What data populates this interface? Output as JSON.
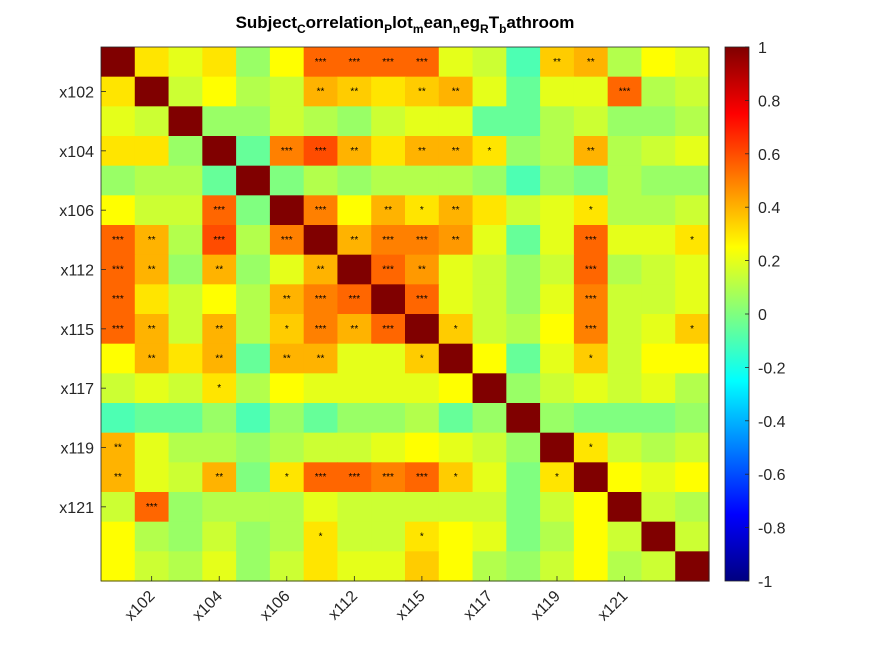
{
  "chart_data": {
    "type": "heatmap",
    "title": {
      "parts": [
        {
          "text": "Subject",
          "sub": false
        },
        {
          "text": "C",
          "sub": true
        },
        {
          "text": "orrelation",
          "sub": false
        },
        {
          "text": "P",
          "sub": true
        },
        {
          "text": "lot",
          "sub": false
        },
        {
          "text": "m",
          "sub": true
        },
        {
          "text": "ean",
          "sub": false
        },
        {
          "text": "n",
          "sub": true
        },
        {
          "text": "eg",
          "sub": false
        },
        {
          "text": "R",
          "sub": true
        },
        {
          "text": "T",
          "sub": false
        },
        {
          "text": "b",
          "sub": true
        },
        {
          "text": "athroom",
          "sub": false
        }
      ]
    },
    "n": 18,
    "x_tick_labels": [
      {
        "index": 1,
        "label": "x102"
      },
      {
        "index": 3,
        "label": "x104"
      },
      {
        "index": 5,
        "label": "x106"
      },
      {
        "index": 7,
        "label": "x112"
      },
      {
        "index": 9,
        "label": "x115"
      },
      {
        "index": 11,
        "label": "x117"
      },
      {
        "index": 13,
        "label": "x119"
      },
      {
        "index": 15,
        "label": "x121"
      }
    ],
    "y_tick_labels": [
      {
        "index": 1,
        "label": "x102"
      },
      {
        "index": 3,
        "label": "x104"
      },
      {
        "index": 5,
        "label": "x106"
      },
      {
        "index": 7,
        "label": "x112"
      },
      {
        "index": 9,
        "label": "x115"
      },
      {
        "index": 11,
        "label": "x117"
      },
      {
        "index": 13,
        "label": "x119"
      },
      {
        "index": 15,
        "label": "x121"
      }
    ],
    "colorbar": {
      "colormap": "jet",
      "range": [
        -1,
        1
      ],
      "ticks": [
        "1",
        "0.8",
        "0.6",
        "0.4",
        "0.2",
        "0",
        "-0.2",
        "-0.4",
        "-0.6",
        "-0.8",
        "-1"
      ]
    },
    "values": [
      [
        1,
        0.3,
        0.2,
        0.3,
        0.05,
        0.25,
        0.55,
        0.55,
        0.55,
        0.55,
        0.2,
        0.15,
        -0.1,
        0.35,
        0.4,
        0.1,
        0.25,
        0.2
      ],
      [
        0.3,
        1,
        0.15,
        0.25,
        0.1,
        0.15,
        0.4,
        0.35,
        0.3,
        0.35,
        0.4,
        0.2,
        -0.05,
        0.2,
        0.2,
        0.55,
        0.1,
        0.15
      ],
      [
        0.2,
        0.15,
        1,
        0.05,
        0.05,
        0.15,
        0.1,
        0.05,
        0.15,
        0.2,
        0.2,
        -0.05,
        -0.05,
        0.1,
        0.15,
        0.05,
        0.05,
        0.1
      ],
      [
        0.3,
        0.3,
        0.05,
        1,
        -0.05,
        0.5,
        0.6,
        0.4,
        0.3,
        0.4,
        0.4,
        0.3,
        0.05,
        0.1,
        0.4,
        0.1,
        0.15,
        0.2
      ],
      [
        0.05,
        0.1,
        0.1,
        -0.05,
        1,
        0.0,
        0.1,
        0.05,
        0.1,
        0.1,
        0.1,
        0.05,
        -0.1,
        0.05,
        0.0,
        0.1,
        0.05,
        0.05
      ],
      [
        0.25,
        0.15,
        0.15,
        0.55,
        0.0,
        1,
        0.5,
        0.25,
        0.4,
        0.3,
        0.4,
        0.3,
        0.15,
        0.2,
        0.3,
        0.1,
        0.1,
        0.15
      ],
      [
        0.55,
        0.4,
        0.1,
        0.6,
        0.1,
        0.5,
        1,
        0.4,
        0.5,
        0.5,
        0.45,
        0.2,
        -0.05,
        0.2,
        0.55,
        0.2,
        0.2,
        0.3
      ],
      [
        0.55,
        0.4,
        0.05,
        0.4,
        0.05,
        0.2,
        0.4,
        1,
        0.55,
        0.45,
        0.2,
        0.15,
        0.05,
        0.15,
        0.55,
        0.1,
        0.15,
        0.2
      ],
      [
        0.55,
        0.3,
        0.15,
        0.25,
        0.1,
        0.4,
        0.5,
        0.55,
        1,
        0.55,
        0.2,
        0.15,
        0.05,
        0.2,
        0.5,
        0.15,
        0.15,
        0.2
      ],
      [
        0.55,
        0.4,
        0.15,
        0.4,
        0.1,
        0.35,
        0.5,
        0.4,
        0.55,
        1,
        0.35,
        0.15,
        0.1,
        0.25,
        0.5,
        0.15,
        0.2,
        0.35
      ],
      [
        0.25,
        0.4,
        0.3,
        0.4,
        -0.05,
        0.4,
        0.4,
        0.2,
        0.2,
        0.35,
        1,
        0.25,
        -0.05,
        0.2,
        0.35,
        0.15,
        0.25,
        0.25
      ],
      [
        0.15,
        0.2,
        0.15,
        0.3,
        0.1,
        0.25,
        0.2,
        0.2,
        0.2,
        0.2,
        0.25,
        1,
        0.05,
        0.15,
        0.2,
        0.15,
        0.2,
        0.1
      ],
      [
        -0.1,
        -0.05,
        -0.05,
        0.05,
        -0.1,
        0.05,
        -0.05,
        0.05,
        0.05,
        0.1,
        -0.05,
        0.05,
        1,
        0.05,
        0.0,
        0.0,
        0.0,
        0.05
      ],
      [
        0.4,
        0.2,
        0.1,
        0.1,
        0.05,
        0.1,
        0.15,
        0.15,
        0.2,
        0.25,
        0.2,
        0.15,
        0.05,
        1,
        0.3,
        0.15,
        0.1,
        0.15
      ],
      [
        0.4,
        0.2,
        0.15,
        0.4,
        0.0,
        0.3,
        0.55,
        0.55,
        0.5,
        0.55,
        0.35,
        0.2,
        0.0,
        0.3,
        1,
        0.25,
        0.2,
        0.25
      ],
      [
        0.15,
        0.55,
        0.05,
        0.1,
        0.1,
        0.1,
        0.2,
        0.15,
        0.15,
        0.15,
        0.15,
        0.15,
        0.0,
        0.15,
        0.25,
        1,
        0.15,
        0.1
      ],
      [
        0.25,
        0.1,
        0.05,
        0.15,
        0.05,
        0.1,
        0.3,
        0.15,
        0.15,
        0.3,
        0.25,
        0.2,
        0.0,
        0.1,
        0.25,
        0.15,
        1,
        0.15
      ],
      [
        0.25,
        0.15,
        0.1,
        0.2,
        0.05,
        0.15,
        0.3,
        0.2,
        0.2,
        0.35,
        0.25,
        0.1,
        0.05,
        0.15,
        0.25,
        0.1,
        0.15,
        1
      ]
    ],
    "annotations": [
      {
        "row": 0,
        "col": 6,
        "text": "***"
      },
      {
        "row": 0,
        "col": 7,
        "text": "***"
      },
      {
        "row": 0,
        "col": 8,
        "text": "***"
      },
      {
        "row": 0,
        "col": 9,
        "text": "***"
      },
      {
        "row": 0,
        "col": 13,
        "text": "**"
      },
      {
        "row": 0,
        "col": 14,
        "text": "**"
      },
      {
        "row": 1,
        "col": 6,
        "text": "**"
      },
      {
        "row": 1,
        "col": 7,
        "text": "**"
      },
      {
        "row": 1,
        "col": 9,
        "text": "**"
      },
      {
        "row": 1,
        "col": 10,
        "text": "**"
      },
      {
        "row": 1,
        "col": 15,
        "text": "***"
      },
      {
        "row": 3,
        "col": 5,
        "text": "***"
      },
      {
        "row": 3,
        "col": 6,
        "text": "***"
      },
      {
        "row": 3,
        "col": 7,
        "text": "**"
      },
      {
        "row": 3,
        "col": 9,
        "text": "**"
      },
      {
        "row": 3,
        "col": 10,
        "text": "**"
      },
      {
        "row": 3,
        "col": 11,
        "text": "*"
      },
      {
        "row": 3,
        "col": 14,
        "text": "**"
      },
      {
        "row": 5,
        "col": 3,
        "text": "***"
      },
      {
        "row": 5,
        "col": 6,
        "text": "***"
      },
      {
        "row": 5,
        "col": 8,
        "text": "**"
      },
      {
        "row": 5,
        "col": 9,
        "text": "*"
      },
      {
        "row": 5,
        "col": 10,
        "text": "**"
      },
      {
        "row": 5,
        "col": 14,
        "text": "*"
      },
      {
        "row": 6,
        "col": 0,
        "text": "***"
      },
      {
        "row": 6,
        "col": 1,
        "text": "**"
      },
      {
        "row": 6,
        "col": 3,
        "text": "***"
      },
      {
        "row": 6,
        "col": 5,
        "text": "***"
      },
      {
        "row": 6,
        "col": 7,
        "text": "**"
      },
      {
        "row": 6,
        "col": 8,
        "text": "***"
      },
      {
        "row": 6,
        "col": 9,
        "text": "***"
      },
      {
        "row": 6,
        "col": 10,
        "text": "**"
      },
      {
        "row": 6,
        "col": 14,
        "text": "***"
      },
      {
        "row": 6,
        "col": 17,
        "text": "*"
      },
      {
        "row": 7,
        "col": 0,
        "text": "***"
      },
      {
        "row": 7,
        "col": 1,
        "text": "**"
      },
      {
        "row": 7,
        "col": 3,
        "text": "**"
      },
      {
        "row": 7,
        "col": 6,
        "text": "**"
      },
      {
        "row": 7,
        "col": 8,
        "text": "***"
      },
      {
        "row": 7,
        "col": 9,
        "text": "**"
      },
      {
        "row": 7,
        "col": 14,
        "text": "***"
      },
      {
        "row": 8,
        "col": 0,
        "text": "***"
      },
      {
        "row": 8,
        "col": 5,
        "text": "**"
      },
      {
        "row": 8,
        "col": 6,
        "text": "***"
      },
      {
        "row": 8,
        "col": 7,
        "text": "***"
      },
      {
        "row": 8,
        "col": 9,
        "text": "***"
      },
      {
        "row": 8,
        "col": 14,
        "text": "***"
      },
      {
        "row": 9,
        "col": 0,
        "text": "***"
      },
      {
        "row": 9,
        "col": 1,
        "text": "**"
      },
      {
        "row": 9,
        "col": 3,
        "text": "**"
      },
      {
        "row": 9,
        "col": 5,
        "text": "*"
      },
      {
        "row": 9,
        "col": 6,
        "text": "***"
      },
      {
        "row": 9,
        "col": 7,
        "text": "**"
      },
      {
        "row": 9,
        "col": 8,
        "text": "***"
      },
      {
        "row": 9,
        "col": 10,
        "text": "*"
      },
      {
        "row": 9,
        "col": 14,
        "text": "***"
      },
      {
        "row": 9,
        "col": 17,
        "text": "*"
      },
      {
        "row": 10,
        "col": 1,
        "text": "**"
      },
      {
        "row": 10,
        "col": 3,
        "text": "**"
      },
      {
        "row": 10,
        "col": 5,
        "text": "**"
      },
      {
        "row": 10,
        "col": 6,
        "text": "**"
      },
      {
        "row": 10,
        "col": 9,
        "text": "*"
      },
      {
        "row": 10,
        "col": 14,
        "text": "*"
      },
      {
        "row": 11,
        "col": 3,
        "text": "*"
      },
      {
        "row": 13,
        "col": 0,
        "text": "**"
      },
      {
        "row": 13,
        "col": 14,
        "text": "*"
      },
      {
        "row": 14,
        "col": 0,
        "text": "**"
      },
      {
        "row": 14,
        "col": 3,
        "text": "**"
      },
      {
        "row": 14,
        "col": 5,
        "text": "*"
      },
      {
        "row": 14,
        "col": 6,
        "text": "***"
      },
      {
        "row": 14,
        "col": 7,
        "text": "***"
      },
      {
        "row": 14,
        "col": 8,
        "text": "***"
      },
      {
        "row": 14,
        "col": 9,
        "text": "***"
      },
      {
        "row": 14,
        "col": 10,
        "text": "*"
      },
      {
        "row": 14,
        "col": 13,
        "text": "*"
      },
      {
        "row": 15,
        "col": 1,
        "text": "***"
      },
      {
        "row": 16,
        "col": 6,
        "text": "*"
      },
      {
        "row": 16,
        "col": 9,
        "text": "*"
      }
    ]
  }
}
